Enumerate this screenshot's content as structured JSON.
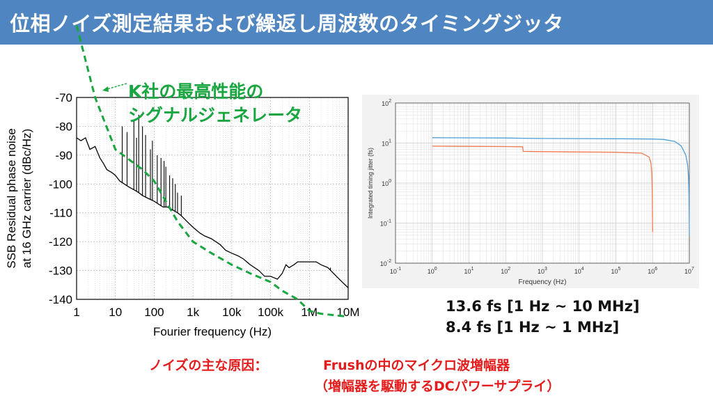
{
  "slide": {
    "title": "位相ノイズ測定結果および繰返し周波数のタイミングジッタ",
    "annotation_line1": "K社の最高性能の",
    "annotation_line2": "シグナルジェネレータ",
    "jitter_line1": "13.6 fs [1 Hz ~ 10 MHz]",
    "jitter_line2": "8.4 fs [1 Hz ~ 1 MHz]",
    "cause_label": "ノイズの主な原因：",
    "cause_text": "Frushの中のマイクロ波増幅器",
    "cause_sub": "（増幅器を駆動するDCパワーサプライ）"
  },
  "colors": {
    "title_bg": "#4f86c1",
    "annotation": "#19a640",
    "cause": "#e41c1c",
    "jitter_series1": "#4d9ed6",
    "jitter_series2": "#ef7b52"
  },
  "chart_data": [
    {
      "type": "line",
      "xscale": "log",
      "xlim": [
        1,
        10000000
      ],
      "ylim": [
        -140,
        -70
      ],
      "grid": true,
      "xlabel": "Fourier frequency (Hz)",
      "ylabel_line1": "SSB Residual phase noise",
      "ylabel_line2": "at 16 GHz carrier (dBc/Hz)",
      "xticks": [
        {
          "v": 1,
          "label": "1"
        },
        {
          "v": 10,
          "label": "10"
        },
        {
          "v": 100,
          "label": "100"
        },
        {
          "v": 1000,
          "label": "1k"
        },
        {
          "v": 10000,
          "label": "10k"
        },
        {
          "v": 100000,
          "label": "100k"
        },
        {
          "v": 1000000,
          "label": "1M"
        },
        {
          "v": 10000000,
          "label": "10M"
        }
      ],
      "yticks": [
        {
          "v": -70,
          "label": "-70"
        },
        {
          "v": -80,
          "label": "-80"
        },
        {
          "v": -90,
          "label": "-90"
        },
        {
          "v": -100,
          "label": "-100"
        },
        {
          "v": -110,
          "label": "-110"
        },
        {
          "v": -120,
          "label": "-120"
        },
        {
          "v": -130,
          "label": "-130"
        },
        {
          "v": -140,
          "label": "-140"
        }
      ],
      "measured": {
        "x": [
          1,
          1.3,
          1.7,
          2.2,
          3,
          4,
          5,
          6,
          8,
          10,
          13,
          17,
          22,
          30,
          40,
          50,
          70,
          100,
          130,
          170,
          220,
          300,
          400,
          500,
          700,
          1000,
          1500,
          2000,
          3000,
          5000,
          7000,
          10000,
          15000,
          20000,
          30000,
          50000,
          70000,
          100000,
          150000,
          200000,
          250000,
          300000,
          400000,
          500000,
          700000,
          1000000,
          1500000,
          2000000,
          3000000,
          5000000,
          7000000,
          10000000
        ],
        "y": [
          -84,
          -85,
          -84,
          -88,
          -87,
          -91,
          -93,
          -95,
          -96,
          -97,
          -99,
          -100,
          -101,
          -102,
          -103,
          -104,
          -105,
          -106,
          -107,
          -108,
          -108,
          -109,
          -110,
          -111,
          -113,
          -115,
          -117,
          -118,
          -119,
          -121,
          -123,
          -124,
          -125,
          -126,
          -128,
          -130,
          -132,
          -132,
          -133,
          -131,
          -128,
          -129,
          -128,
          -127,
          -127,
          -127,
          -127,
          -128,
          -129,
          -132,
          -134,
          -136
        ]
      },
      "spurs": {
        "x": [
          15,
          20,
          30,
          35,
          40,
          50,
          60,
          80,
          90,
          120,
          150,
          180,
          200,
          250,
          300,
          350,
          400,
          500,
          3500000
        ],
        "y": [
          -80,
          -82,
          -78,
          -84,
          -76,
          -80,
          -83,
          -88,
          -85,
          -90,
          -91,
          -92,
          -94,
          -97,
          -98,
          -100,
          -103,
          -104,
          -129
        ]
      },
      "reference": {
        "x": [
          1,
          3,
          10,
          50,
          100,
          200,
          400,
          1000,
          3000,
          10000,
          30000,
          100000,
          200000,
          500000,
          1000000,
          2000000,
          10000000
        ],
        "y": [
          -45,
          -70,
          -88,
          -95,
          -99,
          -106,
          -113,
          -120,
          -124,
          -128,
          -131,
          -134,
          -137,
          -140,
          -144,
          -145,
          -146
        ]
      }
    },
    {
      "type": "line",
      "xscale": "log",
      "yscale": "log",
      "xlim": [
        0.1,
        10000000
      ],
      "ylim": [
        0.01,
        100
      ],
      "grid": true,
      "xlabel": "Frequency (Hz)",
      "ylabel": "Integrated timing jitter (fs)",
      "xticks": [
        {
          "v": 0.1,
          "base": "10",
          "exp": "-1"
        },
        {
          "v": 1,
          "base": "10",
          "exp": "0"
        },
        {
          "v": 10,
          "base": "10",
          "exp": "1"
        },
        {
          "v": 100,
          "base": "10",
          "exp": "2"
        },
        {
          "v": 1000,
          "base": "10",
          "exp": "3"
        },
        {
          "v": 10000,
          "base": "10",
          "exp": "4"
        },
        {
          "v": 100000,
          "base": "10",
          "exp": "5"
        },
        {
          "v": 1000000,
          "base": "10",
          "exp": "6"
        },
        {
          "v": 10000000,
          "base": "10",
          "exp": "7"
        }
      ],
      "yticks": [
        {
          "v": 0.01,
          "base": "10",
          "exp": "-2"
        },
        {
          "v": 0.1,
          "base": "10",
          "exp": "-1"
        },
        {
          "v": 1,
          "base": "10",
          "exp": "0"
        },
        {
          "v": 10,
          "base": "10",
          "exp": "1"
        },
        {
          "v": 100,
          "base": "10",
          "exp": "2"
        }
      ],
      "series": [
        {
          "x": [
            1,
            10,
            100,
            300,
            1000,
            10000,
            100000,
            1000000,
            2000000,
            4000000,
            6000000,
            8000000,
            9000000,
            9500000,
            9800000,
            10000000
          ],
          "y": [
            13.6,
            13.5,
            13.4,
            13.2,
            13.0,
            12.9,
            12.8,
            12.6,
            12.3,
            11.0,
            8.5,
            5.0,
            2.8,
            1.5,
            0.5,
            0.05
          ]
        },
        {
          "x": [
            1,
            10,
            100,
            290,
            300,
            1000,
            10000,
            100000,
            500000,
            800000,
            900000,
            950000,
            980000,
            1000000
          ],
          "y": [
            8.4,
            8.3,
            8.2,
            8.1,
            6.2,
            6.1,
            6.0,
            5.9,
            5.6,
            4.5,
            3.2,
            1.8,
            0.6,
            0.06
          ]
        }
      ]
    }
  ]
}
